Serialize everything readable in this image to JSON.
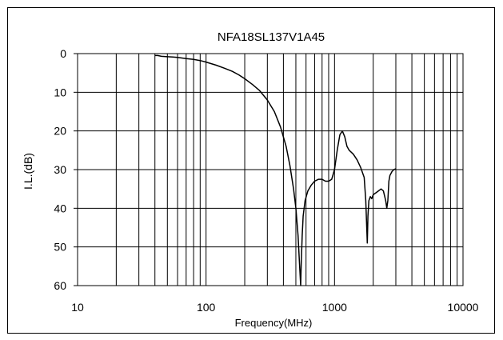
{
  "chart_data": {
    "type": "line",
    "title": "NFA18SL137V1A45",
    "xlabel": "Frequency(MHz)",
    "ylabel": "I.L.(dB)",
    "x_scale": "log",
    "xlim": [
      10,
      10000
    ],
    "ylim": [
      0,
      60
    ],
    "y_inverted": true,
    "grid": true,
    "x_ticks": [
      10,
      100,
      1000,
      10000
    ],
    "x_tick_labels": [
      "10",
      "100",
      "1000",
      "10000"
    ],
    "y_ticks": [
      0,
      10,
      20,
      30,
      40,
      50,
      60
    ],
    "y_tick_labels": [
      "0",
      "10",
      "20",
      "30",
      "40",
      "50",
      "60"
    ],
    "line_color": "#000000",
    "series": [
      {
        "x": [
          40,
          42,
          45,
          50,
          55,
          60,
          70,
          80,
          90,
          100,
          120,
          140,
          160,
          180,
          200,
          230,
          260,
          300,
          340,
          380,
          420,
          450,
          480,
          500,
          520,
          535,
          545,
          550,
          560,
          570,
          590,
          620,
          660,
          700,
          750,
          800,
          850,
          900,
          950,
          1000,
          1050,
          1100,
          1150,
          1200,
          1250,
          1300,
          1350,
          1400,
          1500,
          1600,
          1700,
          1750,
          1780,
          1800,
          1820,
          1850,
          1900,
          1950,
          2000,
          2100,
          2200,
          2300,
          2400,
          2500,
          2550,
          2600,
          2650,
          2700,
          2800,
          2900,
          3000
        ],
        "y": [
          0.5,
          0.5,
          0.7,
          0.8,
          0.9,
          1.0,
          1.3,
          1.5,
          1.8,
          2.2,
          3.0,
          3.8,
          4.6,
          5.5,
          6.5,
          8.0,
          9.5,
          12.0,
          15.0,
          19.0,
          24.0,
          29.0,
          35.0,
          40.0,
          47.0,
          55.0,
          60.0,
          55.0,
          47.0,
          42.0,
          38.0,
          35.5,
          34.0,
          33.0,
          32.5,
          32.5,
          33.0,
          33.0,
          32.5,
          30.0,
          25.0,
          21.0,
          20.0,
          21.5,
          24.0,
          25.0,
          25.5,
          26.0,
          27.5,
          29.5,
          32.0,
          38.0,
          45.0,
          49.0,
          42.0,
          38.0,
          37.0,
          37.5,
          36.5,
          36.0,
          35.5,
          35.0,
          35.5,
          38.0,
          40.0,
          38.0,
          33.0,
          31.5,
          30.5,
          30.0,
          29.8
        ]
      }
    ]
  }
}
